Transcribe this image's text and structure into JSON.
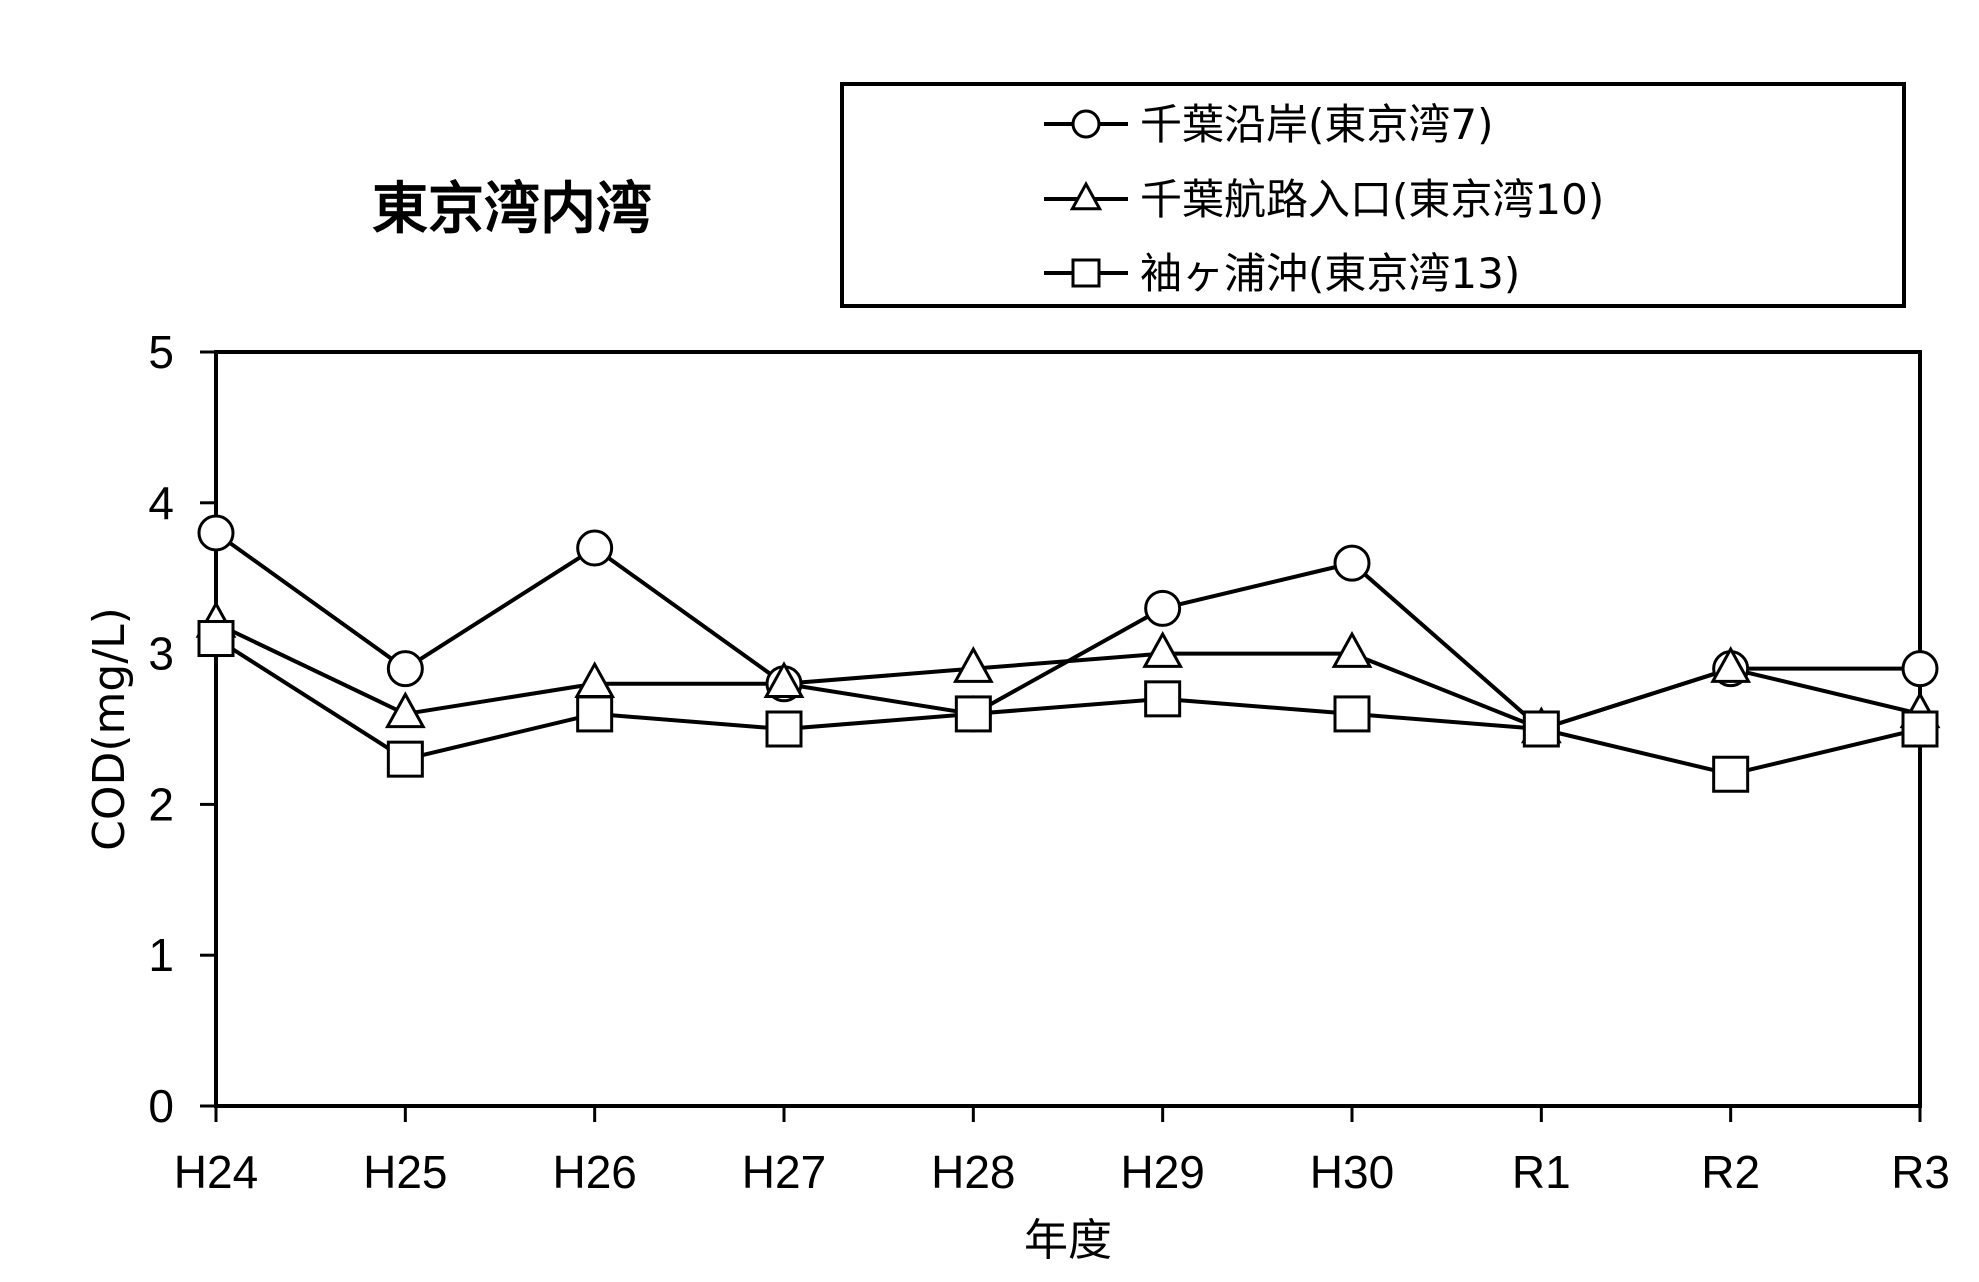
{
  "chart_data": {
    "type": "line",
    "title": "東京湾内湾",
    "xlabel": "年度",
    "ylabel": "COD(mg/L)",
    "categories": [
      "H24",
      "H25",
      "H26",
      "H27",
      "H28",
      "H29",
      "H30",
      "R1",
      "R2",
      "R3"
    ],
    "ylim": [
      0,
      5
    ],
    "yticks": [
      "0",
      "1",
      "2",
      "3",
      "4",
      "5"
    ],
    "grid": false,
    "legend_position": "top-right",
    "series": [
      {
        "name": "千葉沿岸(東京湾7)",
        "marker": "circle",
        "values": [
          3.8,
          2.9,
          3.7,
          2.8,
          2.6,
          3.3,
          3.6,
          2.5,
          2.9,
          2.9
        ]
      },
      {
        "name": "千葉航路入口(東京湾10)",
        "marker": "triangle",
        "values": [
          3.2,
          2.6,
          2.8,
          2.8,
          2.9,
          3.0,
          3.0,
          2.5,
          2.9,
          2.6
        ]
      },
      {
        "name": "袖ヶ浦沖(東京湾13)",
        "marker": "square",
        "values": [
          3.1,
          2.3,
          2.6,
          2.5,
          2.6,
          2.7,
          2.6,
          2.5,
          2.2,
          2.5
        ]
      }
    ]
  },
  "colors": {
    "line": "#000000",
    "background": "#ffffff"
  }
}
